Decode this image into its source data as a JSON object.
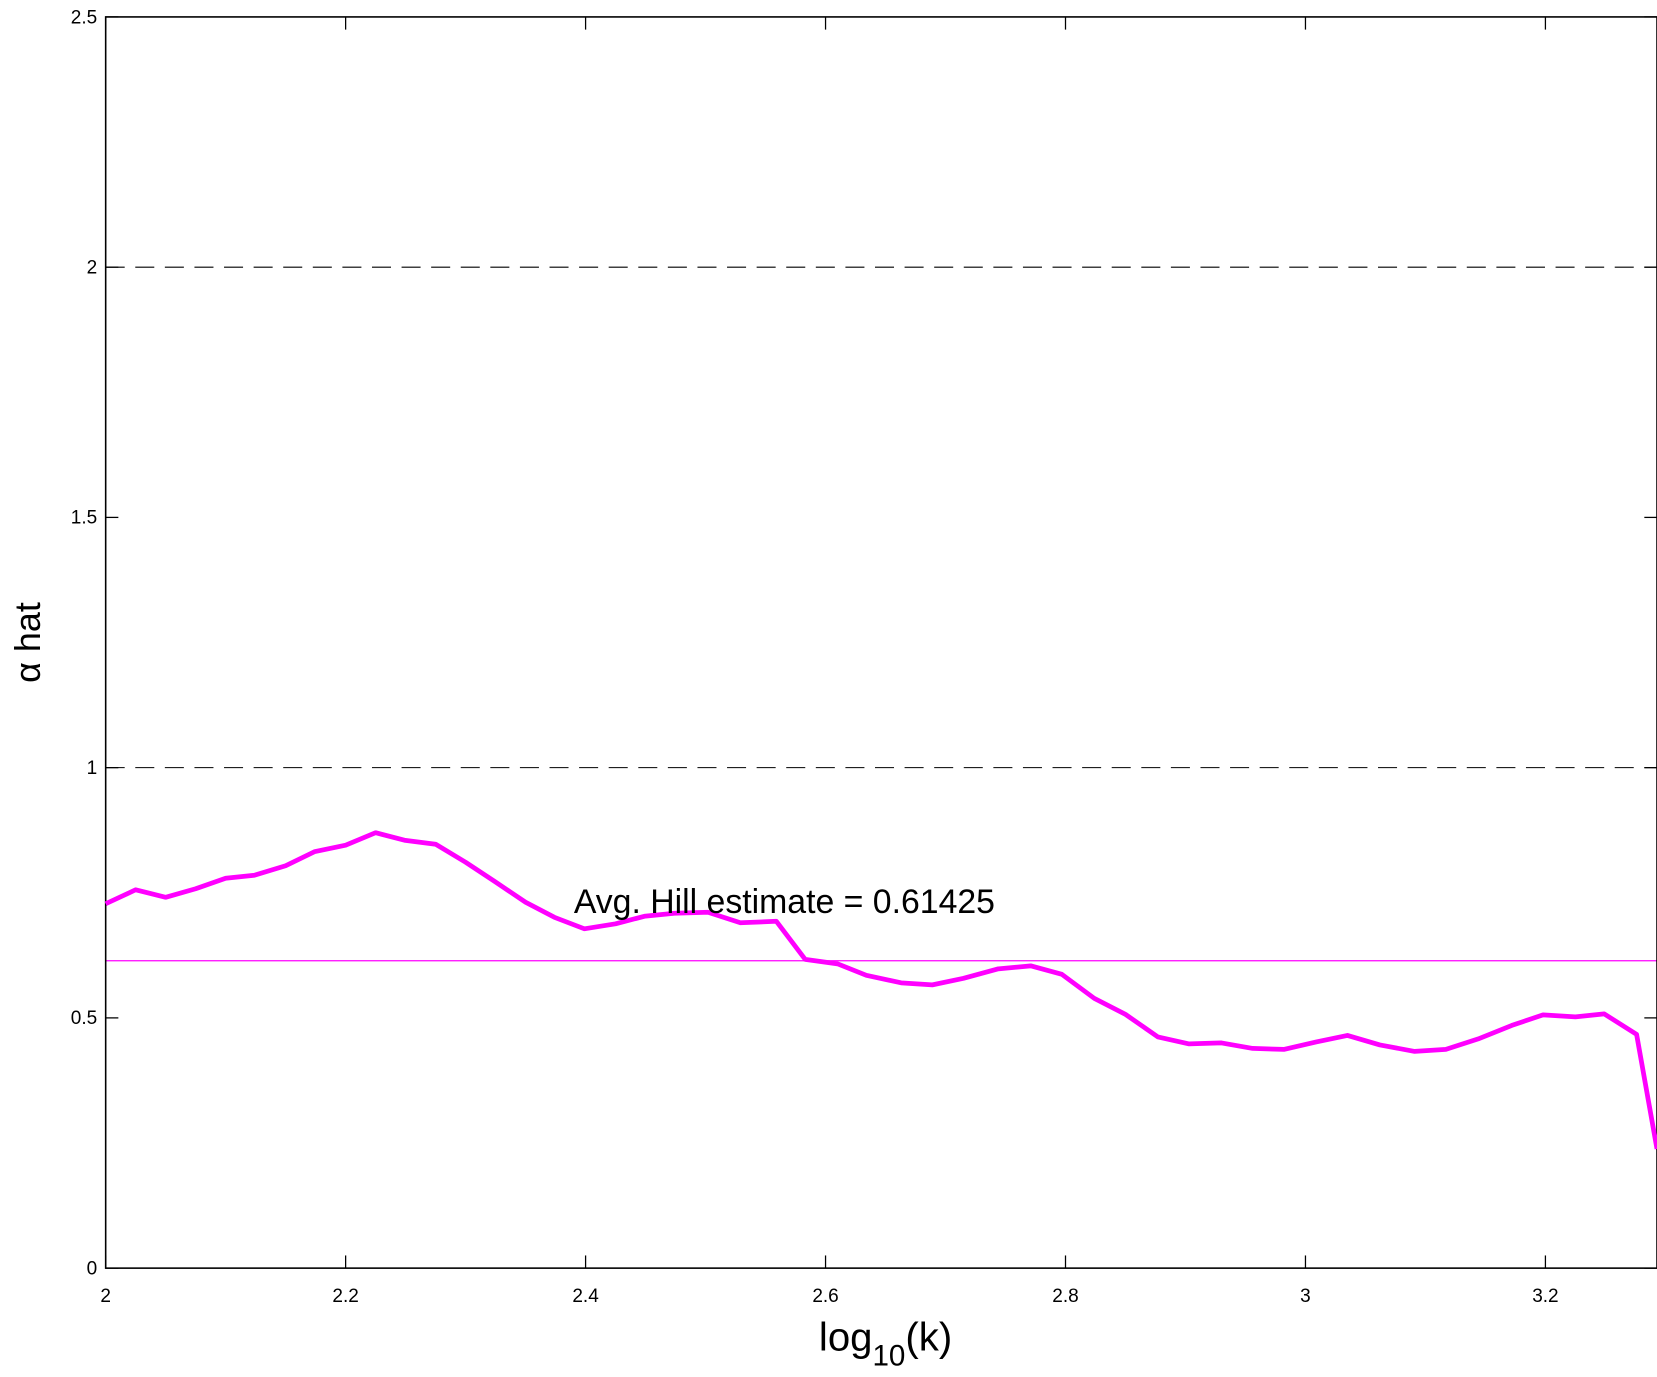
{
  "chart_data": {
    "type": "line",
    "xlabel": [
      "log",
      "10",
      "(k)"
    ],
    "ylabel": "α hat",
    "annotation": "Avg. Hill estimate = 0.61425",
    "mean_line": 0.61425,
    "reference_lines": [
      1,
      2
    ],
    "xlim": [
      2,
      3.293
    ],
    "ylim": [
      0,
      2.5
    ],
    "xticks": [
      2,
      2.2,
      2.4,
      2.6,
      2.8,
      3,
      3.2
    ],
    "yticks": [
      0,
      0.5,
      1,
      1.5,
      2,
      2.5
    ],
    "x": [
      2.0,
      2.025,
      2.05,
      2.075,
      2.1,
      2.124,
      2.15,
      2.174,
      2.2,
      2.225,
      2.249,
      2.275,
      2.3,
      2.324,
      2.35,
      2.374,
      2.399,
      2.425,
      2.449,
      2.474,
      2.502,
      2.529,
      2.559,
      2.583,
      2.61,
      2.634,
      2.663,
      2.689,
      2.715,
      2.744,
      2.771,
      2.797,
      2.824,
      2.85,
      2.877,
      2.903,
      2.93,
      2.956,
      2.982,
      3.009,
      3.035,
      3.062,
      3.091,
      3.117,
      3.144,
      3.172,
      3.198,
      3.225,
      3.249,
      3.276,
      3.293
    ],
    "series": [
      {
        "color": "#ff00ff",
        "values": [
          0.728,
          0.756,
          0.741,
          0.758,
          0.779,
          0.785,
          0.804,
          0.832,
          0.845,
          0.87,
          0.855,
          0.847,
          0.811,
          0.773,
          0.731,
          0.701,
          0.678,
          0.688,
          0.703,
          0.709,
          0.711,
          0.69,
          0.693,
          0.617,
          0.608,
          0.585,
          0.57,
          0.566,
          0.579,
          0.598,
          0.604,
          0.587,
          0.539,
          0.507,
          0.462,
          0.448,
          0.45,
          0.439,
          0.437,
          0.452,
          0.465,
          0.446,
          0.433,
          0.437,
          0.458,
          0.485,
          0.506,
          0.502,
          0.508,
          0.467,
          0.238
        ]
      }
    ]
  }
}
